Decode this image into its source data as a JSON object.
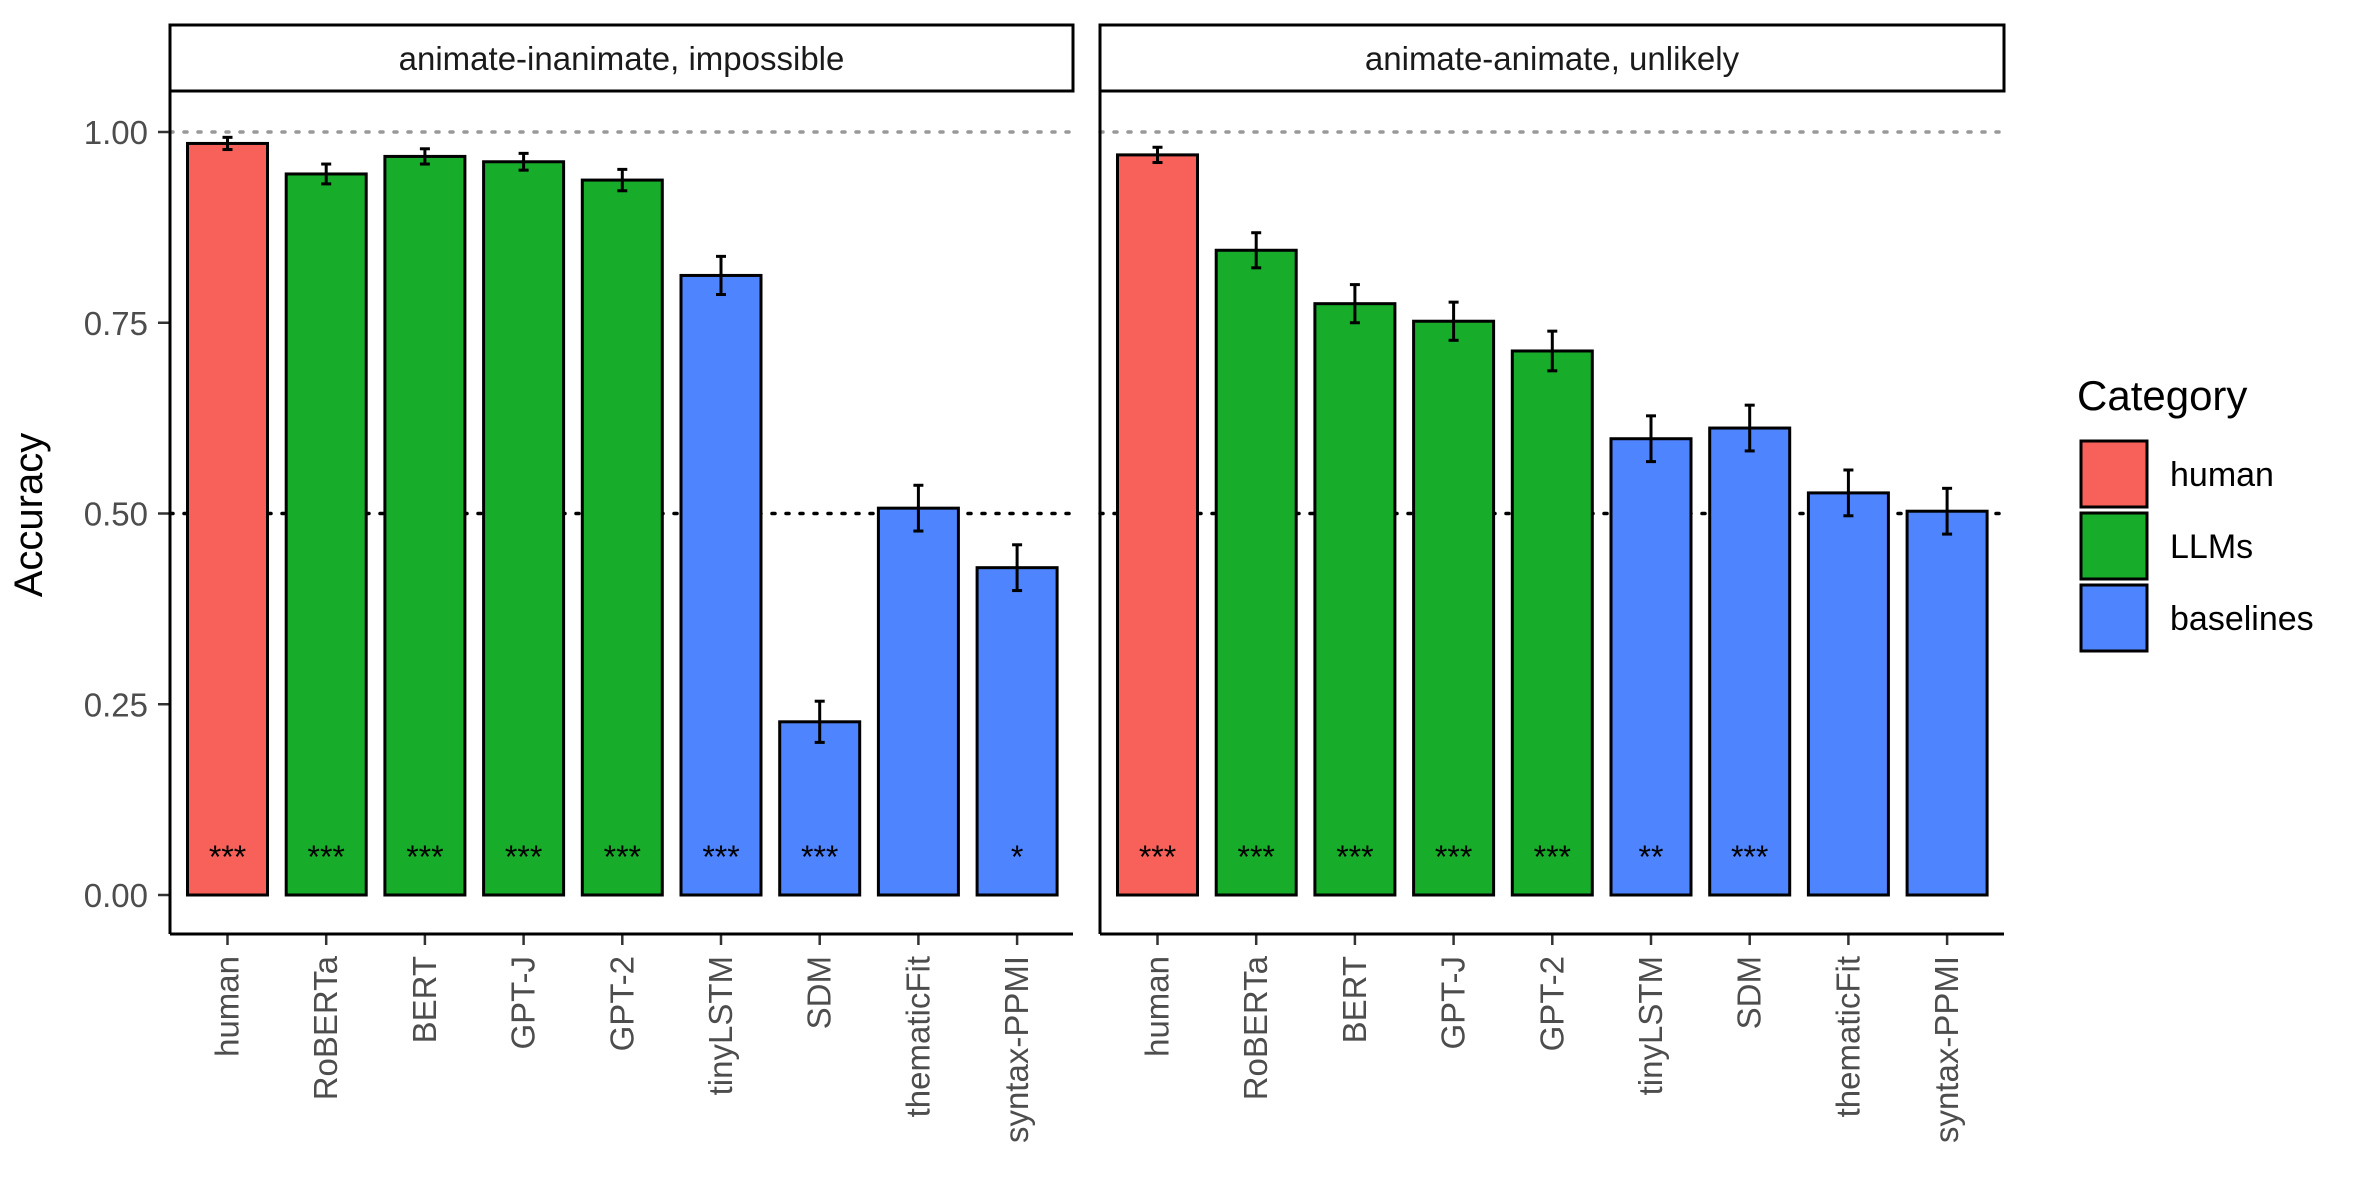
{
  "chart_data": {
    "type": "bar",
    "ylabel": "Accuracy",
    "ylim": [
      0,
      1.03
    ],
    "yticks": [
      {
        "value": 0,
        "label": "0.00"
      },
      {
        "value": 0.25,
        "label": "0.25"
      },
      {
        "value": 0.5,
        "label": "0.50"
      },
      {
        "value": 0.75,
        "label": "0.75"
      },
      {
        "value": 1,
        "label": "1.00"
      }
    ],
    "reference_lines": [
      {
        "value": 1.0,
        "style": "dotted",
        "color": "#999999"
      },
      {
        "value": 0.5,
        "style": "dotted",
        "color": "#000000"
      }
    ],
    "categories": [
      "human",
      "RoBERTa",
      "BERT",
      "GPT-J",
      "GPT-2",
      "tinyLSTM",
      "SDM",
      "thematicFit",
      "syntax-PPMI"
    ],
    "category_group": [
      "human",
      "LLMs",
      "LLMs",
      "LLMs",
      "LLMs",
      "baselines",
      "baselines",
      "baselines",
      "baselines"
    ],
    "legend": {
      "title": "Category",
      "position": "right",
      "items": [
        {
          "key": "human",
          "label": "human",
          "color": "#F8615A"
        },
        {
          "key": "LLMs",
          "label": "LLMs",
          "color": "#17AD2A"
        },
        {
          "key": "baselines",
          "label": "baselines",
          "color": "#4F84FF"
        }
      ]
    },
    "facets": [
      {
        "title": "animate-inanimate, impossible",
        "values": [
          0.985,
          0.945,
          0.968,
          0.961,
          0.937,
          0.812,
          0.227,
          0.507,
          0.429
        ],
        "err_low": [
          0.977,
          0.932,
          0.958,
          0.95,
          0.923,
          0.787,
          0.2,
          0.477,
          0.399
        ],
        "err_high": [
          0.993,
          0.958,
          0.978,
          0.972,
          0.951,
          0.837,
          0.254,
          0.537,
          0.459
        ],
        "significance": [
          "***",
          "***",
          "***",
          "***",
          "***",
          "***",
          "***",
          "",
          "*"
        ]
      },
      {
        "title": "animate-animate, unlikely",
        "values": [
          0.97,
          0.845,
          0.775,
          0.752,
          0.713,
          0.598,
          0.612,
          0.527,
          0.503
        ],
        "err_low": [
          0.96,
          0.822,
          0.75,
          0.727,
          0.687,
          0.568,
          0.582,
          0.497,
          0.473
        ],
        "err_high": [
          0.98,
          0.868,
          0.8,
          0.777,
          0.739,
          0.628,
          0.642,
          0.557,
          0.533
        ],
        "significance": [
          "***",
          "***",
          "***",
          "***",
          "***",
          "**",
          "***",
          "",
          ""
        ]
      }
    ]
  }
}
